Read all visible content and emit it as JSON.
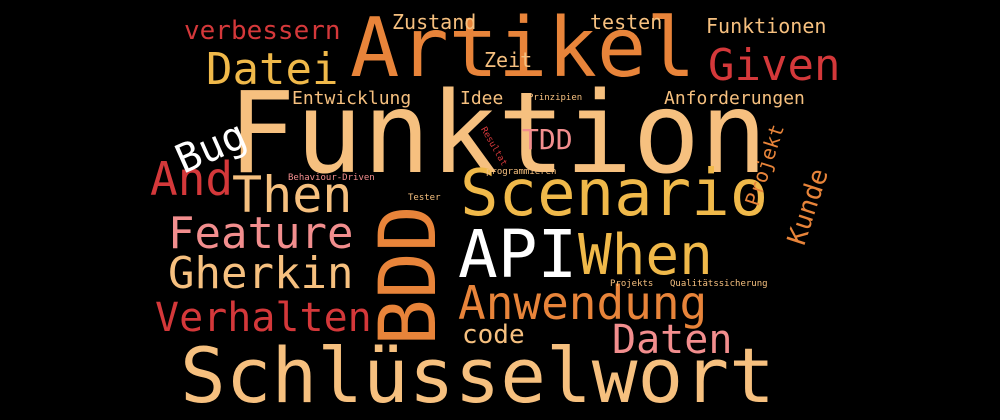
{
  "palette": {
    "background": "#000000",
    "light_peach": "#f6c07f",
    "orange": "#e8843a",
    "gold": "#f0b94a",
    "red": "#d4383a",
    "pink": "#f28e8e",
    "white": "#ffffff"
  },
  "words": [
    {
      "text": "Funktion"
    },
    {
      "text": "Artikel"
    },
    {
      "text": "Schlüsselwort"
    },
    {
      "text": "Scenario"
    },
    {
      "text": "API"
    },
    {
      "text": "BDD"
    },
    {
      "text": "When"
    },
    {
      "text": "Anwendung"
    },
    {
      "text": "Gherkin"
    },
    {
      "text": "Then"
    },
    {
      "text": "Feature"
    },
    {
      "text": "Verhalten"
    },
    {
      "text": "And"
    },
    {
      "text": "Datei"
    },
    {
      "text": "Given"
    },
    {
      "text": "Daten"
    },
    {
      "text": "Bug"
    },
    {
      "text": "verbessern"
    },
    {
      "text": "Kunde"
    },
    {
      "text": "Projekt"
    },
    {
      "text": "TDD"
    },
    {
      "text": "code"
    },
    {
      "text": "Zustand"
    },
    {
      "text": "testen"
    },
    {
      "text": "Funktionen"
    },
    {
      "text": "Zeit"
    },
    {
      "text": "Entwicklung"
    },
    {
      "text": "Idee"
    },
    {
      "text": "Anforderungen"
    },
    {
      "text": "Prinzipien"
    },
    {
      "text": "Resultat"
    },
    {
      "text": "Behaviour-Driven"
    },
    {
      "text": "programmieren"
    },
    {
      "text": "Tester"
    },
    {
      "text": "Projekts"
    },
    {
      "text": "Qualitätssicherung"
    }
  ]
}
